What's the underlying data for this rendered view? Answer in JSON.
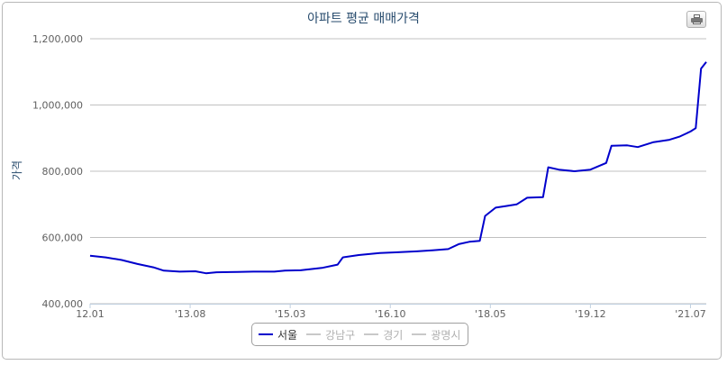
{
  "chart_data": {
    "type": "line",
    "title": "아파트 평균 매매가격",
    "xlabel": "",
    "ylabel": "가격",
    "ylim": [
      400000,
      1200000
    ],
    "yticks": [
      400000,
      600000,
      800000,
      1000000,
      1200000
    ],
    "ytick_labels": [
      "400,000",
      "600,000",
      "800,000",
      "1,000,000",
      "1,200,000"
    ],
    "xrange": [
      "2012-01",
      "2021-10"
    ],
    "xticks": [
      "2012-01",
      "2013-08",
      "2015-03",
      "2016-10",
      "2018-05",
      "2019-12",
      "2021-07"
    ],
    "xtick_labels": [
      "12.01",
      "'13.08",
      "'15.03",
      "'16.10",
      "'18.05",
      "'19.12",
      "'21.07"
    ],
    "grid": true,
    "legend_position": "bottom",
    "series": [
      {
        "name": "서울",
        "color": "#0000cc",
        "visible": true,
        "points": [
          [
            "2012-01",
            545000
          ],
          [
            "2012-04",
            540000
          ],
          [
            "2012-07",
            532000
          ],
          [
            "2012-10",
            520000
          ],
          [
            "2013-01",
            510000
          ],
          [
            "2013-03",
            500000
          ],
          [
            "2013-06",
            497000
          ],
          [
            "2013-09",
            498000
          ],
          [
            "2013-11",
            492000
          ],
          [
            "2014-01",
            495000
          ],
          [
            "2014-05",
            496000
          ],
          [
            "2014-08",
            497000
          ],
          [
            "2014-12",
            497000
          ],
          [
            "2015-02",
            500000
          ],
          [
            "2015-05",
            501000
          ],
          [
            "2015-09",
            508000
          ],
          [
            "2015-12",
            518000
          ],
          [
            "2016-01",
            540000
          ],
          [
            "2016-04",
            547000
          ],
          [
            "2016-08",
            553000
          ],
          [
            "2016-11",
            555000
          ],
          [
            "2017-03",
            558000
          ],
          [
            "2017-06",
            561000
          ],
          [
            "2017-09",
            565000
          ],
          [
            "2017-11",
            580000
          ],
          [
            "2018-01",
            587000
          ],
          [
            "2018-03",
            590000
          ],
          [
            "2018-04",
            665000
          ],
          [
            "2018-06",
            690000
          ],
          [
            "2018-08",
            695000
          ],
          [
            "2018-10",
            700000
          ],
          [
            "2018-12",
            720000
          ],
          [
            "2019-03",
            722000
          ],
          [
            "2019-04",
            812000
          ],
          [
            "2019-06",
            805000
          ],
          [
            "2019-09",
            800000
          ],
          [
            "2019-12",
            805000
          ],
          [
            "2020-03",
            825000
          ],
          [
            "2020-04",
            877000
          ],
          [
            "2020-07",
            878000
          ],
          [
            "2020-09",
            873000
          ],
          [
            "2020-12",
            888000
          ],
          [
            "2021-03",
            895000
          ],
          [
            "2021-05",
            905000
          ],
          [
            "2021-07",
            920000
          ],
          [
            "2021-08",
            930000
          ],
          [
            "2021-09",
            1110000
          ],
          [
            "2021-10",
            1130000
          ]
        ]
      },
      {
        "name": "강남구",
        "color": "#a8a8a8",
        "visible": false,
        "points": []
      },
      {
        "name": "경기",
        "color": "#a8a8a8",
        "visible": false,
        "points": []
      },
      {
        "name": "광명시",
        "color": "#a8a8a8",
        "visible": false,
        "points": []
      }
    ]
  }
}
